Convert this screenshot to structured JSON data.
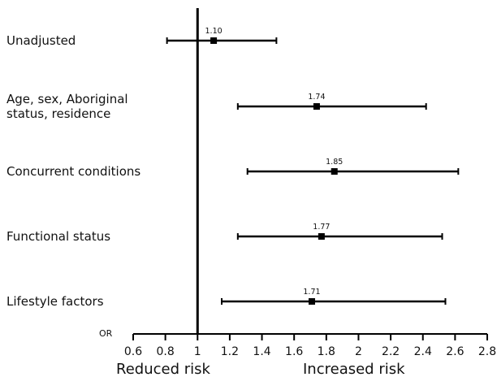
{
  "chart_data": {
    "type": "forest",
    "axis_label": "OR",
    "xlim": [
      0.6,
      2.8
    ],
    "xticks": [
      0.6,
      0.8,
      1,
      1.2,
      1.4,
      1.6,
      1.8,
      2,
      2.2,
      2.4,
      2.6,
      2.8
    ],
    "xtick_labels": [
      "0.6",
      "0.8",
      "1",
      "1.2",
      "1.4",
      "1.6",
      "1.8",
      "2",
      "2.2",
      "2.4",
      "2.6",
      "2.8"
    ],
    "reference_value": 1,
    "left_region_label": "Reduced risk",
    "right_region_label": "Increased risk",
    "rows": [
      {
        "label_lines": [
          "Unadjusted"
        ],
        "estimate": 1.1,
        "estimate_label": "1.10",
        "lower": 0.81,
        "upper": 1.49
      },
      {
        "label_lines": [
          "Age, sex, Aboriginal",
          "status, residence"
        ],
        "estimate": 1.74,
        "estimate_label": "1.74",
        "lower": 1.25,
        "upper": 2.42
      },
      {
        "label_lines": [
          "Concurrent conditions"
        ],
        "estimate": 1.85,
        "estimate_label": "1.85",
        "lower": 1.31,
        "upper": 2.62
      },
      {
        "label_lines": [
          "Functional status"
        ],
        "estimate": 1.77,
        "estimate_label": "1.77",
        "lower": 1.25,
        "upper": 2.52
      },
      {
        "label_lines": [
          "Lifestyle factors"
        ],
        "estimate": 1.71,
        "estimate_label": "1.71",
        "lower": 1.15,
        "upper": 2.54
      }
    ]
  }
}
